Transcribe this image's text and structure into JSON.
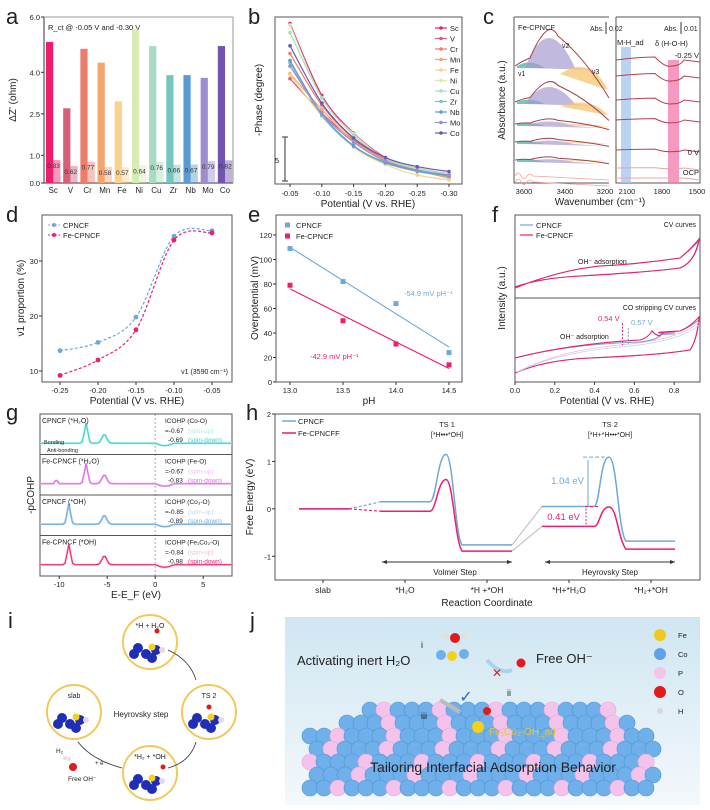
{
  "figure": {
    "panel_labels": [
      "a",
      "b",
      "c",
      "d",
      "e",
      "f",
      "g",
      "h",
      "i",
      "j"
    ]
  },
  "chart_data": [
    {
      "panel": "a",
      "type": "bar",
      "title": "R_ct @ -0.05 V and -0.30 V",
      "xlabel": "",
      "ylabel": "ΔZ' (ohm)",
      "ylim": [
        0,
        6.0
      ],
      "yticks": [
        "0.0",
        "1.0",
        "2.5",
        "4.0",
        "6.0"
      ],
      "ytick_values": [
        0,
        1.0,
        2.5,
        4.0,
        6.0
      ],
      "categories": [
        "Sc",
        "V",
        "Cr",
        "Mn",
        "Fe",
        "Ni",
        "Cu",
        "Zr",
        "Nb",
        "Mo",
        "Co"
      ],
      "series": [
        {
          "name": "-0.05 V",
          "values": [
            5.1,
            2.7,
            4.85,
            4.35,
            2.95,
            5.55,
            4.95,
            3.9,
            3.9,
            3.8,
            4.95
          ]
        },
        {
          "name": "-0.30 V",
          "values": [
            0.83,
            0.62,
            0.77,
            0.58,
            0.57,
            0.64,
            0.76,
            0.66,
            0.67,
            0.79,
            0.82
          ]
        }
      ],
      "value_labels": [
        "0.83",
        "0.62",
        "0.77",
        "0.58",
        "0.57",
        "0.64",
        "0.76",
        "0.66",
        "0.67",
        "0.79",
        "0.82"
      ],
      "colors": [
        "#ee1d6e",
        "#d4607a",
        "#ee7c6c",
        "#f4a56c",
        "#fbd28c",
        "#d6ecb2",
        "#a8dcc0",
        "#76c6bf",
        "#5b9bd2",
        "#9d8cd0",
        "#6f55b0"
      ]
    },
    {
      "panel": "b",
      "type": "line",
      "xlabel": "Potential (V vs. RHE)",
      "ylabel": "-Phase (degree)",
      "x": [
        -0.05,
        -0.1,
        -0.15,
        -0.2,
        -0.25,
        -0.3
      ],
      "xticks": [
        "-0.05",
        "-0.10",
        "-0.15",
        "-0.20",
        "-0.25",
        "-0.30"
      ],
      "scale_bar_label": "5",
      "legend": "top-right",
      "series": [
        {
          "name": "Sc",
          "color": "#ee1d6e",
          "values": [
            26.5,
            16.2,
            10.8,
            7.3,
            5.5,
            4.4
          ]
        },
        {
          "name": "V",
          "color": "#d4607a",
          "values": [
            18.6,
            13.7,
            9.8,
            7.1,
            5.6,
            4.5
          ]
        },
        {
          "name": "Cr",
          "color": "#ee7c6c",
          "values": [
            22.2,
            14.8,
            10.0,
            7.1,
            5.6,
            4.6
          ]
        },
        {
          "name": "Mn",
          "color": "#f4a56c",
          "values": [
            19.3,
            14.2,
            9.6,
            6.9,
            5.5,
            4.4
          ]
        },
        {
          "name": "Fe",
          "color": "#fbd28c",
          "values": [
            19.1,
            13.3,
            8.8,
            6.3,
            4.8,
            4.1
          ]
        },
        {
          "name": "Ni",
          "color": "#d6ecb2",
          "values": [
            26.3,
            15.8,
            10.7,
            7.2,
            5.7,
            4.9
          ]
        },
        {
          "name": "Cu",
          "color": "#a8dcc0",
          "values": [
            25.2,
            15.9,
            10.5,
            7.2,
            5.8,
            5.0
          ]
        },
        {
          "name": "Zr",
          "color": "#76c6bf",
          "values": [
            20.9,
            13.3,
            8.9,
            6.5,
            5.3,
            4.6
          ]
        },
        {
          "name": "Nb",
          "color": "#5b9bd2",
          "values": [
            21.2,
            13.6,
            9.0,
            6.6,
            5.4,
            4.7
          ]
        },
        {
          "name": "Mo",
          "color": "#9d8cd0",
          "values": [
            20.4,
            13.7,
            9.5,
            6.8,
            5.5,
            4.8
          ]
        },
        {
          "name": "Co",
          "color": "#6f55b0",
          "values": [
            23.3,
            15.1,
            10.1,
            7.3,
            6.0,
            5.3
          ]
        }
      ]
    },
    {
      "panel": "c",
      "type": "line",
      "xlabel": "Wavenumber (cm⁻¹)",
      "ylabel": "Absorbance (a.u.)",
      "left_xticks": [
        "3600",
        "3400",
        "3200"
      ],
      "right_xticks": [
        "2100",
        "1800",
        "1500"
      ],
      "sample_label": "Fe-CPNCF",
      "left_scale_bar": "0.02",
      "right_scale_bar": "0.01",
      "abs_label": "Abs.",
      "band_labels": {
        "v1": "ν1",
        "v2": "ν2",
        "v3": "ν3",
        "mh": "M-H_ad",
        "hoh": "δ (H-O-H)"
      },
      "potential_labels": [
        "-0.25 V",
        "0 V",
        "OCP"
      ],
      "band_colors": {
        "v1": "#5bbfab",
        "v2": "#a79bd0",
        "v3": "#f7c46c",
        "mh": "#a9c8ef",
        "hoh": "#f47fb0"
      }
    },
    {
      "panel": "d",
      "type": "scatter",
      "xlabel": "Potential (V vs. RHE)",
      "ylabel": "ν1 proportion (%)",
      "annotation": "ν1 (3590 cm⁻¹)",
      "x": [
        -0.25,
        -0.2,
        -0.15,
        -0.1,
        -0.05
      ],
      "xticks": [
        "-0.25",
        "-0.20",
        "-0.15",
        "-0.10",
        "-0.05"
      ],
      "yticks": [
        "10",
        "20",
        "30"
      ],
      "ylim": [
        8,
        37
      ],
      "legend": "top-left",
      "series": [
        {
          "name": "CPNCF",
          "color": "#6ea8d8",
          "values": [
            13.7,
            15.2,
            19.8,
            34.5,
            35.5
          ]
        },
        {
          "name": "Fe-CPNCF",
          "color": "#ee1d6e",
          "values": [
            9.2,
            12.0,
            17.5,
            33.8,
            35.1
          ]
        }
      ]
    },
    {
      "panel": "e",
      "type": "scatter",
      "xlabel": "pH",
      "ylabel": "Overpotential (mV)",
      "x": [
        13.0,
        13.5,
        14.0,
        14.5
      ],
      "xticks": [
        "13.0",
        "13.5",
        "14.0",
        "14.5"
      ],
      "yticks": [
        "0",
        "20",
        "40",
        "60",
        "80",
        "100",
        "120"
      ],
      "ylim": [
        0,
        125
      ],
      "legend": "top-left",
      "series": [
        {
          "name": "CPNCF",
          "color": "#6ea8d8",
          "values": [
            109,
            82,
            64,
            24
          ],
          "fit_label": "-54.9 mV pH⁻¹",
          "fit": [
            110,
            28.5
          ]
        },
        {
          "name": "Fe-CPNCF",
          "color": "#ee1d6e",
          "values": [
            79,
            50,
            31,
            14
          ],
          "fit_label": "-42.9 mV pH⁻¹",
          "fit": [
            76,
            11
          ]
        }
      ]
    },
    {
      "panel": "f",
      "type": "line",
      "xlabel": "Potential (V vs. RHE)",
      "ylabel": "Intensity (a.u.)",
      "xticks": [
        "0.0",
        "0.2",
        "0.4",
        "0.6",
        "0.8"
      ],
      "top_title": "CV curves",
      "bottom_title": "CO stripping CV curves",
      "oh_label": "OH⁻ adsorption",
      "peak_labels": {
        "fe": "0.54 V",
        "cp": "0.57 V"
      },
      "legend": "top-left",
      "series": [
        {
          "name": "CPNCF",
          "color": "#6ea8d8"
        },
        {
          "name": "Fe-CPNCF",
          "color": "#ee1d6e"
        }
      ]
    },
    {
      "panel": "g",
      "type": "line",
      "xlabel": "E-E_F (eV)",
      "ylabel": "-pCOHP",
      "xticks": [
        "-10",
        "-5",
        "0",
        "5"
      ],
      "bonding_label": "Bonding",
      "antibonding_label": "Anti-bonding",
      "rows": [
        {
          "title": "CPNCF (*H₂O)",
          "icohp": "ICOHP (Co-O)",
          "up": "=-0.67",
          "down": "-0.69",
          "color": "#3fcfc9",
          "light": "#a8ece9"
        },
        {
          "title": "Fe-CPNCF (*H₂O)",
          "icohp": "ICOHP (Fe-O)",
          "up": "=-0.67",
          "down": "-0.83",
          "color": "#d86ee0",
          "light": "#f0bdf3"
        },
        {
          "title": "CPNCF (*OH)",
          "icohp": "ICOHP (Co₃-O)",
          "up": "=-0.85",
          "down": "-0.89",
          "color": "#6ea8d8",
          "light": "#bcd9f2"
        },
        {
          "title": "Fe-CPNCF (*OH)",
          "icohp": "ICOHP (Fe₁Co₂-O)",
          "up": "=-0.84",
          "down": "-0.98",
          "color": "#ee1d6e",
          "light": "#f8b7cf"
        }
      ],
      "spin_up": "(spin-up)",
      "spin_down": "(spin-down)"
    },
    {
      "panel": "h",
      "type": "line",
      "xlabel": "Reaction Coordinate",
      "ylabel": "Free Energy (eV)",
      "yticks": [
        "-1",
        "0",
        "1",
        "2"
      ],
      "ylim": [
        -1.5,
        2
      ],
      "xticks": [
        "slab",
        "*H₂O",
        "*H +*OH",
        "*H+*H₂O",
        "*H₂+*OH"
      ],
      "ts1": {
        "title": "TS 1",
        "sub": "[*H•••*OH]"
      },
      "ts2": {
        "title": "TS 2",
        "sub": "[*H+*H•••*OH]"
      },
      "steps": {
        "volmer": "Volmer Step",
        "heyrovsky": "Heyrovsky Step"
      },
      "barriers": {
        "cp": "1.04 eV",
        "fe": "0.41 eV"
      },
      "legend": "top-left",
      "series": [
        {
          "name": "CPNCF",
          "color": "#6ea8d8",
          "levels": [
            0,
            0.15,
            1.15,
            -0.76,
            0.05,
            1.09,
            -0.68
          ]
        },
        {
          "name": "Fe-CPNCFF",
          "color": "#ee1d6e",
          "levels": [
            0,
            -0.05,
            0.62,
            -0.89,
            -0.37,
            0.04,
            -0.85
          ]
        }
      ]
    }
  ],
  "panel_i": {
    "center_label": "Heyrovsky step",
    "states": [
      "*H + H₂O",
      "TS 2",
      "*H₂ + *OH",
      "slab"
    ],
    "side_labels": {
      "h2": "H₂",
      "electron": "+ e⁻",
      "free_oh": "Free OH⁻"
    }
  },
  "panel_j": {
    "step_labels": {
      "i": "i",
      "ii": "ii",
      "iii": "iii"
    },
    "activating": "Activating inert H₂O",
    "free_oh": "Free OH⁻",
    "site": "Fe₁Co₂-OH_ad",
    "bottom": "Tailoring Interfacial Adsorption Behavior",
    "legend": [
      {
        "name": "Fe",
        "color": "#f2c91a"
      },
      {
        "name": "Co",
        "color": "#5fa3e6"
      },
      {
        "name": "P",
        "color": "#f3c3ec"
      },
      {
        "name": "O",
        "color": "#e11b1b"
      },
      {
        "name": "H",
        "color": "#d8d8d8"
      }
    ]
  }
}
